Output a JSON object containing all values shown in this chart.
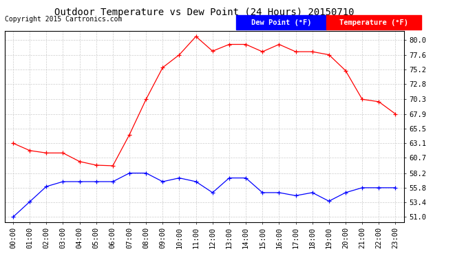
{
  "title": "Outdoor Temperature vs Dew Point (24 Hours) 20150710",
  "copyright": "Copyright 2015 Cartronics.com",
  "x_labels": [
    "00:00",
    "01:00",
    "02:00",
    "03:00",
    "04:00",
    "05:00",
    "06:00",
    "07:00",
    "08:00",
    "09:00",
    "10:00",
    "11:00",
    "12:00",
    "13:00",
    "14:00",
    "15:00",
    "16:00",
    "17:00",
    "18:00",
    "19:00",
    "20:00",
    "21:00",
    "22:00",
    "23:00"
  ],
  "temp_values": [
    63.1,
    61.9,
    61.5,
    61.5,
    60.1,
    59.5,
    59.4,
    64.5,
    70.3,
    75.5,
    77.6,
    80.6,
    78.2,
    79.3,
    79.3,
    78.1,
    79.3,
    78.1,
    78.1,
    77.6,
    75.0,
    70.3,
    69.9,
    67.9
  ],
  "dew_values": [
    51.0,
    53.5,
    56.0,
    56.8,
    56.8,
    56.8,
    56.8,
    58.2,
    58.2,
    56.8,
    57.4,
    56.8,
    55.0,
    57.4,
    57.4,
    55.0,
    55.0,
    54.5,
    55.0,
    53.6,
    55.0,
    55.8,
    55.8,
    55.8
  ],
  "temp_color": "#ff0000",
  "dew_color": "#0000ff",
  "background_color": "#ffffff",
  "grid_color": "#cccccc",
  "yticks": [
    51.0,
    53.4,
    55.8,
    58.2,
    60.7,
    63.1,
    65.5,
    67.9,
    70.3,
    72.8,
    75.2,
    77.6,
    80.0
  ],
  "ylim": [
    50.2,
    81.5
  ],
  "xlim": [
    -0.5,
    23.5
  ],
  "legend_dew_label": "Dew Point (°F)",
  "legend_temp_label": "Temperature (°F)",
  "title_fontsize": 10,
  "tick_fontsize": 7.5,
  "copyright_fontsize": 7
}
